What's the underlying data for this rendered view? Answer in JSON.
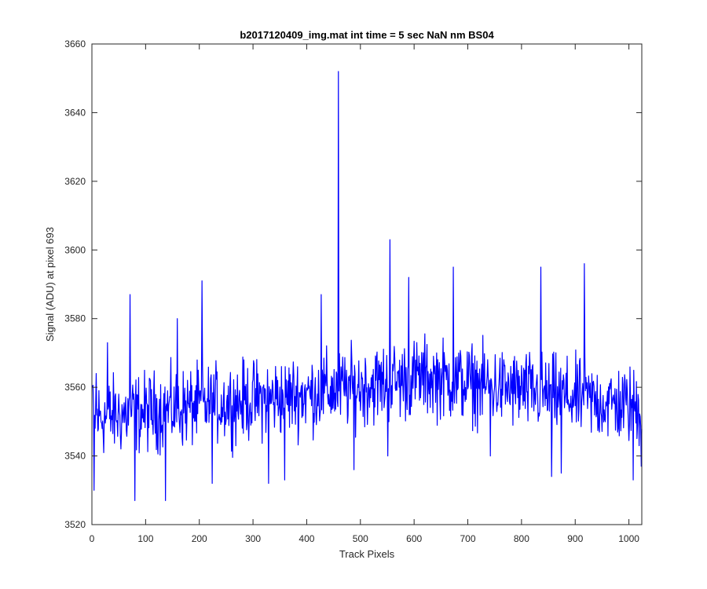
{
  "chart_data": {
    "type": "line",
    "title": "b2017120409_img.mat int time = 5 sec  NaN nm BS04",
    "xlabel": "Track Pixels",
    "ylabel": "Signal (ADU) at pixel 693",
    "xlim": [
      0,
      1024
    ],
    "ylim": [
      3520,
      3660
    ],
    "x_ticks": [
      "0",
      "100",
      "200",
      "300",
      "400",
      "500",
      "600",
      "700",
      "800",
      "900",
      "1000"
    ],
    "y_ticks": [
      "3520",
      "3540",
      "3560",
      "3580",
      "3600",
      "3620",
      "3640",
      "3660"
    ],
    "grid": false,
    "legend": "none",
    "series": [
      {
        "color": "#0000ff",
        "x_start": 1,
        "x_step": 1,
        "baseline_start": 3551,
        "baseline_mid": 3558,
        "baseline_peak": 3563,
        "baseline_end": 3554,
        "noise_amplitude": 9,
        "values_shown": "1024 samples",
        "notable_points": [
          {
            "x": 1,
            "y": 3560
          },
          {
            "x": 4,
            "y": 3530
          },
          {
            "x": 8,
            "y": 3564
          },
          {
            "x": 29,
            "y": 3573
          },
          {
            "x": 71,
            "y": 3587
          },
          {
            "x": 80,
            "y": 3527
          },
          {
            "x": 137,
            "y": 3527
          },
          {
            "x": 159,
            "y": 3580
          },
          {
            "x": 205,
            "y": 3591
          },
          {
            "x": 224,
            "y": 3532
          },
          {
            "x": 329,
            "y": 3532
          },
          {
            "x": 359,
            "y": 3533
          },
          {
            "x": 427,
            "y": 3587
          },
          {
            "x": 459,
            "y": 3652
          },
          {
            "x": 488,
            "y": 3536
          },
          {
            "x": 555,
            "y": 3603
          },
          {
            "x": 551,
            "y": 3540
          },
          {
            "x": 590,
            "y": 3592
          },
          {
            "x": 673,
            "y": 3595
          },
          {
            "x": 742,
            "y": 3540
          },
          {
            "x": 836,
            "y": 3595
          },
          {
            "x": 856,
            "y": 3534
          },
          {
            "x": 874,
            "y": 3535
          },
          {
            "x": 917,
            "y": 3596
          },
          {
            "x": 1008,
            "y": 3533
          },
          {
            "x": 1023,
            "y": 3537
          }
        ]
      }
    ]
  }
}
